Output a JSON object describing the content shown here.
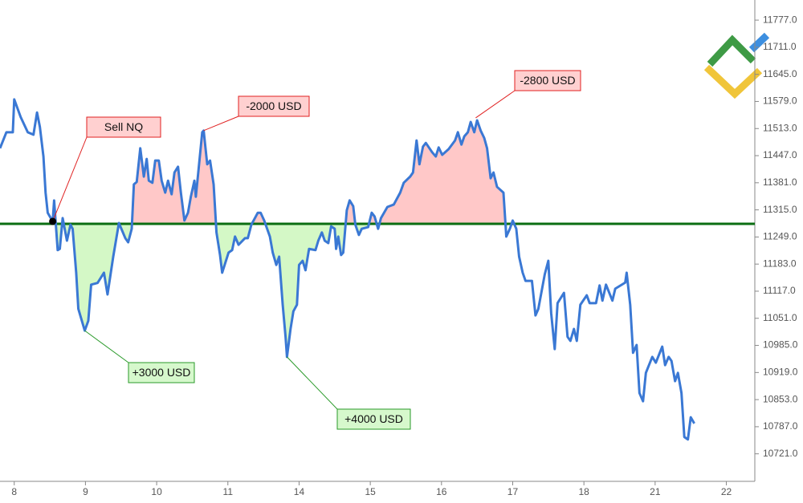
{
  "chart_data": {
    "type": "line",
    "x": [
      -0.2,
      -0.11,
      -0.02,
      0.0,
      0.09,
      0.19,
      0.27,
      0.32,
      0.36,
      0.41,
      0.44,
      0.47,
      0.54,
      0.56,
      0.61,
      0.64,
      0.68,
      0.74,
      0.79,
      0.82,
      0.87,
      0.9,
      0.99,
      1.04,
      1.08,
      1.17,
      1.26,
      1.31,
      1.39,
      1.47,
      1.56,
      1.6,
      1.65,
      1.68,
      1.72,
      1.77,
      1.82,
      1.86,
      1.89,
      1.94,
      1.98,
      2.03,
      2.07,
      2.12,
      2.16,
      2.21,
      2.25,
      2.3,
      2.34,
      2.39,
      2.44,
      2.48,
      2.53,
      2.55,
      2.59,
      2.64,
      2.66,
      2.71,
      2.75,
      2.8,
      2.84,
      2.89,
      2.92,
      3.01,
      3.06,
      3.1,
      3.15,
      3.24,
      3.28,
      3.33,
      3.42,
      3.46,
      3.51,
      3.59,
      3.63,
      3.68,
      3.72,
      3.77,
      3.81,
      3.83,
      3.88,
      3.92,
      3.97,
      4.0,
      4.05,
      4.09,
      4.14,
      4.23,
      4.27,
      4.32,
      4.36,
      4.41,
      4.45,
      4.5,
      4.52,
      4.55,
      4.59,
      4.62,
      4.67,
      4.71,
      4.76,
      4.79,
      4.84,
      4.88,
      4.97,
      5.02,
      5.06,
      5.11,
      5.15,
      5.24,
      5.33,
      5.42,
      5.47,
      5.56,
      5.6,
      5.65,
      5.69,
      5.74,
      5.78,
      5.87,
      5.92,
      5.96,
      6.01,
      6.1,
      6.19,
      6.23,
      6.28,
      6.32,
      6.37,
      6.41,
      6.46,
      6.5,
      6.55,
      6.6,
      6.64,
      6.69,
      6.73,
      6.78,
      6.87,
      6.91,
      6.96,
      7.0,
      7.05,
      7.09,
      7.14,
      7.18,
      7.27,
      7.32,
      7.36,
      7.45,
      7.5,
      7.54,
      7.59,
      7.63,
      7.72,
      7.77,
      7.81,
      7.86,
      7.9,
      7.95,
      8.04,
      8.08,
      8.17,
      8.22,
      8.26,
      8.31,
      8.4,
      8.44,
      8.58,
      8.6,
      8.65,
      8.69,
      8.74,
      8.78,
      8.83,
      8.87,
      8.96,
      9.01,
      9.1,
      9.14,
      9.19,
      9.23,
      9.28,
      9.32,
      9.37,
      9.41,
      9.46,
      9.5,
      9.55
    ],
    "values": [
      11465,
      11504,
      11504,
      11584,
      11541,
      11504,
      11498,
      11552,
      11517,
      11445,
      11357,
      11308,
      11287,
      11338,
      11217,
      11220,
      11295,
      11240,
      11279,
      11269,
      11162,
      11074,
      11021,
      11045,
      11133,
      11137,
      11162,
      11109,
      11201,
      11283,
      11246,
      11236,
      11269,
      11377,
      11383,
      11465,
      11396,
      11439,
      11386,
      11381,
      11435,
      11435,
      11386,
      11357,
      11386,
      11353,
      11406,
      11420,
      11357,
      11289,
      11308,
      11347,
      11386,
      11347,
      11416,
      11504,
      11508,
      11426,
      11435,
      11377,
      11260,
      11205,
      11162,
      11211,
      11217,
      11250,
      11230,
      11246,
      11246,
      11279,
      11308,
      11308,
      11289,
      11250,
      11211,
      11181,
      11201,
      11084,
      11006,
      10957,
      11025,
      11068,
      11084,
      11181,
      11191,
      11168,
      11220,
      11217,
      11240,
      11260,
      11240,
      11234,
      11275,
      11269,
      11220,
      11250,
      11205,
      11211,
      11314,
      11338,
      11324,
      11279,
      11254,
      11269,
      11273,
      11308,
      11299,
      11269,
      11295,
      11322,
      11328,
      11357,
      11381,
      11396,
      11406,
      11484,
      11426,
      11469,
      11478,
      11455,
      11445,
      11467,
      11449,
      11463,
      11484,
      11504,
      11474,
      11494,
      11504,
      11529,
      11504,
      11533,
      11508,
      11490,
      11465,
      11392,
      11406,
      11371,
      11357,
      11250,
      11269,
      11289,
      11269,
      11201,
      11162,
      11142,
      11142,
      11058,
      11074,
      11158,
      11191,
      11064,
      10976,
      11088,
      11113,
      11006,
      10996,
      11025,
      10996,
      11084,
      11107,
      11088,
      11088,
      11131,
      11094,
      11133,
      11094,
      11123,
      11138,
      11162,
      11084,
      10967,
      10986,
      10869,
      10849,
      10918,
      10957,
      10943,
      10982,
      10937,
      10957,
      10947,
      10898,
      10918,
      10869,
      10762,
      10756,
      10810,
      10795
    ],
    "color": "#3a78d4",
    "xlim": [
      -0.2,
      10.4
    ],
    "xticks": [
      {
        "value": 0,
        "label": "8"
      },
      {
        "value": 1,
        "label": "9"
      },
      {
        "value": 2,
        "label": "10"
      },
      {
        "value": 3,
        "label": "11"
      },
      {
        "value": 4,
        "label": "14"
      },
      {
        "value": 5,
        "label": "15"
      },
      {
        "value": 6,
        "label": "16"
      },
      {
        "value": 7,
        "label": "17"
      },
      {
        "value": 8,
        "label": "18"
      },
      {
        "value": 9,
        "label": "21"
      },
      {
        "value": 10,
        "label": "22"
      }
    ],
    "ylim": [
      10654,
      11826
    ],
    "yticks": [
      {
        "value": 11777,
        "label": "11777.0"
      },
      {
        "value": 11711,
        "label": "11711.0"
      },
      {
        "value": 11645,
        "label": "11645.0"
      },
      {
        "value": 11579,
        "label": "11579.0"
      },
      {
        "value": 11513,
        "label": "11513.0"
      },
      {
        "value": 11447,
        "label": "11447.0"
      },
      {
        "value": 11381,
        "label": "11381.0"
      },
      {
        "value": 11315,
        "label": "11315.0"
      },
      {
        "value": 11249,
        "label": "11249.0"
      },
      {
        "value": 11183,
        "label": "11183.0"
      },
      {
        "value": 11117,
        "label": "11117.0"
      },
      {
        "value": 11051,
        "label": "11051.0"
      },
      {
        "value": 10985,
        "label": "10985.0"
      },
      {
        "value": 10919,
        "label": "10919.0"
      },
      {
        "value": 10853,
        "label": "10853.0"
      },
      {
        "value": 10787,
        "label": "10787.0"
      },
      {
        "value": 10721,
        "label": "10721.0"
      }
    ],
    "level": {
      "value": 11281,
      "color": "#0b6e12",
      "shade_from": 0.54,
      "shade_to": 6.93,
      "above_color": "#ffc8c8",
      "below_color": "#d4f8c6"
    },
    "annotations": [
      {
        "text": "Sell NQ",
        "x": 0.54,
        "y": 11287,
        "color": "#e02020",
        "fill": "#ffd0d0",
        "marker": true
      },
      {
        "text": "-2000 USD",
        "x": 2.66,
        "y": 11508,
        "color": "#e02020",
        "fill": "#ffd0d0"
      },
      {
        "text": "-2800 USD",
        "x": 6.48,
        "y": 11539,
        "color": "#e02020",
        "fill": "#ffd0d0"
      },
      {
        "text": "+3000 USD",
        "x": 0.99,
        "y": 11021,
        "color": "#2a9a2a",
        "fill": "#d6f8cc"
      },
      {
        "text": "+4000 USD",
        "x": 3.83,
        "y": 10957,
        "color": "#2a9a2a",
        "fill": "#d6f8cc"
      }
    ]
  }
}
